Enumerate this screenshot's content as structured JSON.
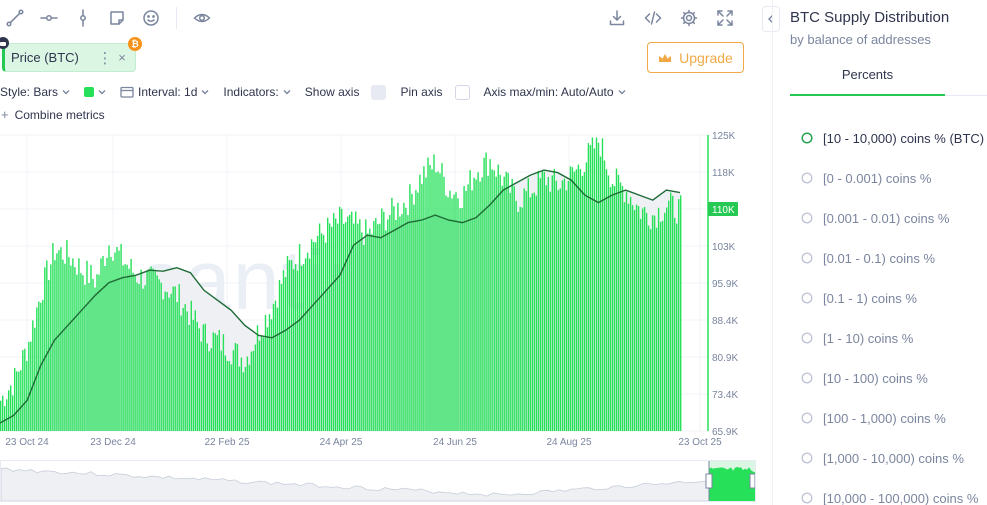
{
  "toolbar": {
    "left_icons": [
      "line-tool-icon",
      "horizontal-ray-icon",
      "vertical-line-icon",
      "sticky-note-icon",
      "emoji-icon",
      "eye-icon"
    ],
    "right_icons": [
      "download-icon",
      "embed-code-icon",
      "settings-gear-icon",
      "fullscreen-icon"
    ]
  },
  "metric": {
    "label": "Price (BTC)",
    "menu": "⋮",
    "close": "×",
    "badge": "₿"
  },
  "upgrade_label": "Upgrade",
  "settings": {
    "style": "Style: Bars",
    "interval": "Interval: 1d",
    "indicators": "Indicators:",
    "show_axis": "Show axis",
    "pin_axis": "Pin axis",
    "axis_maxmin": "Axis max/min: Auto/Auto",
    "combine": "Combine metrics"
  },
  "colors": {
    "accent": "#26c953",
    "bars": "#26e05a",
    "line": "#1e6b36",
    "upgrade": "#f1a948"
  },
  "chart_data": {
    "type": "bar",
    "watermark": "santiment",
    "x_ticks": [
      "23 Oct 24",
      "23 Dec 24",
      "22 Feb 25",
      "24 Apr 25",
      "24 Jun 25",
      "24 Aug 25",
      "23 Oct 25"
    ],
    "y_ticks": [
      "125K",
      "118K",
      "110K",
      "103K",
      "95.9K",
      "88.4K",
      "80.9K",
      "73.4K",
      "65.9K"
    ],
    "y_range": [
      65900,
      125000
    ],
    "current_label": "110K",
    "series": [
      {
        "name": "Price (BTC)",
        "kind": "line",
        "points": [
          [
            0,
            67500
          ],
          [
            10,
            69000
          ],
          [
            20,
            72000
          ],
          [
            30,
            79000
          ],
          [
            40,
            84000
          ],
          [
            50,
            87000
          ],
          [
            60,
            90000
          ],
          [
            70,
            93000
          ],
          [
            80,
            95500
          ],
          [
            90,
            96500
          ],
          [
            100,
            97000
          ],
          [
            110,
            98000
          ],
          [
            120,
            97800
          ],
          [
            130,
            98500
          ],
          [
            140,
            97500
          ],
          [
            150,
            94000
          ],
          [
            160,
            92000
          ],
          [
            170,
            90000
          ],
          [
            180,
            87000
          ],
          [
            190,
            85000
          ],
          [
            200,
            84500
          ],
          [
            210,
            86000
          ],
          [
            220,
            88000
          ],
          [
            230,
            91000
          ],
          [
            240,
            94000
          ],
          [
            250,
            97000
          ],
          [
            260,
            103000
          ],
          [
            270,
            105000
          ],
          [
            280,
            104500
          ],
          [
            290,
            106000
          ],
          [
            300,
            107500
          ],
          [
            310,
            108000
          ],
          [
            320,
            109000
          ],
          [
            330,
            108000
          ],
          [
            340,
            107500
          ],
          [
            350,
            108500
          ],
          [
            360,
            111000
          ],
          [
            370,
            114000
          ],
          [
            380,
            115500
          ],
          [
            390,
            117000
          ],
          [
            400,
            118000
          ],
          [
            410,
            117500
          ],
          [
            420,
            116000
          ],
          [
            430,
            113000
          ],
          [
            440,
            111500
          ],
          [
            450,
            113000
          ],
          [
            460,
            114000
          ],
          [
            470,
            113000
          ],
          [
            480,
            112000
          ],
          [
            490,
            114000
          ],
          [
            500,
            113500
          ]
        ]
      },
      {
        "name": "BTC Supply Distribution",
        "kind": "bar",
        "points": [
          [
            0,
            72000
          ],
          [
            10,
            76000
          ],
          [
            20,
            83000
          ],
          [
            30,
            94000
          ],
          [
            40,
            102000
          ],
          [
            50,
            101000
          ],
          [
            60,
            98000
          ],
          [
            70,
            96000
          ],
          [
            80,
            103500
          ],
          [
            90,
            100000
          ],
          [
            100,
            97000
          ],
          [
            110,
            96000
          ],
          [
            120,
            95000
          ],
          [
            130,
            93000
          ],
          [
            140,
            89000
          ],
          [
            150,
            85000
          ],
          [
            160,
            84000
          ],
          [
            170,
            82000
          ],
          [
            180,
            80000
          ],
          [
            190,
            86000
          ],
          [
            200,
            91000
          ],
          [
            210,
            98000
          ],
          [
            220,
            101000
          ],
          [
            230,
            104000
          ],
          [
            240,
            106000
          ],
          [
            250,
            108000
          ],
          [
            260,
            107000
          ],
          [
            270,
            105000
          ],
          [
            280,
            108000
          ],
          [
            290,
            110000
          ],
          [
            300,
            112000
          ],
          [
            310,
            117000
          ],
          [
            320,
            119500
          ],
          [
            330,
            114000
          ],
          [
            340,
            113000
          ],
          [
            350,
            118000
          ],
          [
            360,
            120000
          ],
          [
            370,
            116000
          ],
          [
            380,
            112000
          ],
          [
            390,
            114000
          ],
          [
            400,
            116500
          ],
          [
            410,
            115000
          ],
          [
            420,
            117000
          ],
          [
            430,
            120000
          ],
          [
            440,
            124000
          ],
          [
            450,
            116000
          ],
          [
            460,
            114000
          ],
          [
            470,
            110000
          ],
          [
            480,
            109000
          ],
          [
            490,
            111000
          ],
          [
            500,
            110000
          ]
        ]
      }
    ]
  },
  "sidebar": {
    "title": "BTC Supply Distribution",
    "subtitle": "by balance of addresses",
    "tab": "Percents",
    "items": [
      {
        "label": "[10 - 10,000) coins % (BTC)",
        "active": true
      },
      {
        "label": "[0 - 0.001) coins %",
        "active": false
      },
      {
        "label": "[0.001 - 0.01) coins %",
        "active": false
      },
      {
        "label": "[0.01 - 0.1) coins %",
        "active": false
      },
      {
        "label": "[0.1 - 1) coins %",
        "active": false
      },
      {
        "label": "[1 - 10) coins %",
        "active": false
      },
      {
        "label": "[10 - 100) coins %",
        "active": false
      },
      {
        "label": "[100 - 1,000) coins %",
        "active": false
      },
      {
        "label": "[1,000 - 10,000) coins %",
        "active": false
      },
      {
        "label": "[10,000 - 100,000) coins %",
        "active": false
      }
    ]
  }
}
